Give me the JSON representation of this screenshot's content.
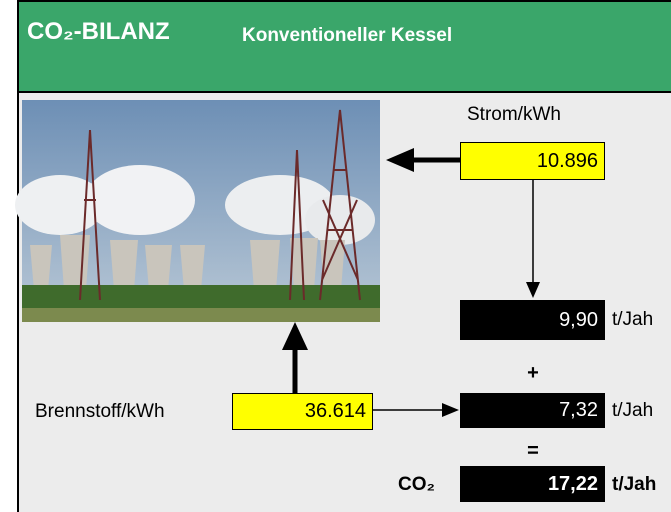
{
  "header": {
    "title": "CO₂-BILANZ",
    "subtitle": "Konventioneller Kessel"
  },
  "electricity": {
    "label": "Strom/kWh",
    "value": "10.896",
    "result": "9,90",
    "unit": "t/Jah"
  },
  "fuel": {
    "label": "Brennstoff/kWh",
    "value": "36.614",
    "result": "7,32",
    "unit": "t/Jah"
  },
  "operators": {
    "plus": "+",
    "equals": "="
  },
  "total": {
    "label": "CO₂",
    "value": "17,22",
    "unit": "t/Jah"
  }
}
